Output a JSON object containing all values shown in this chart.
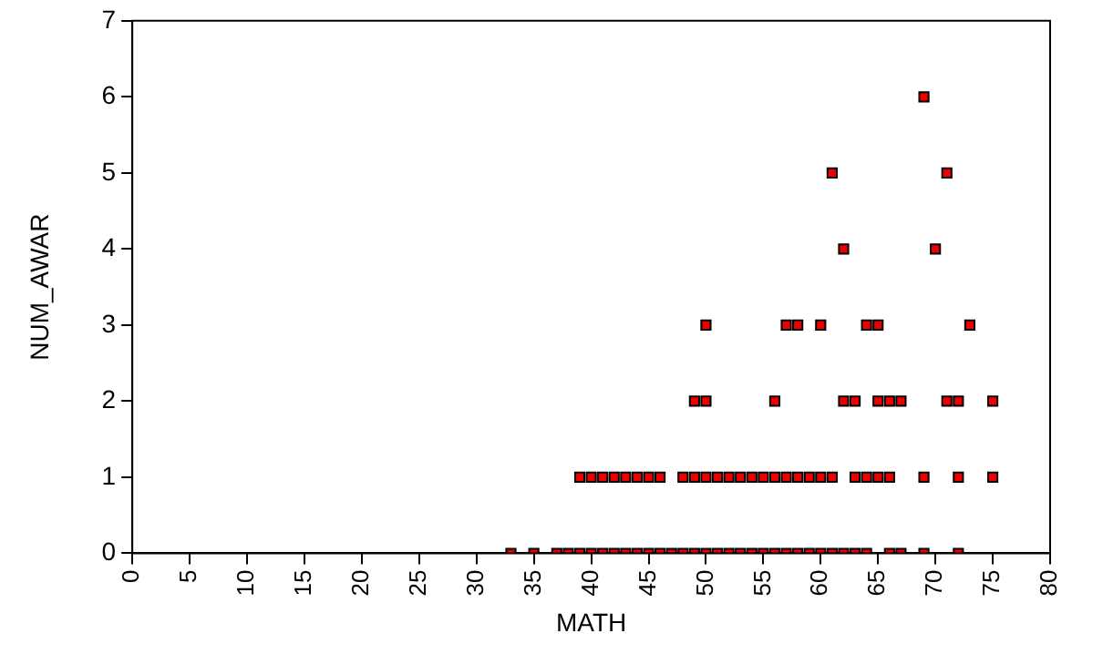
{
  "chart_data": {
    "type": "scatter",
    "xlabel": "MATH",
    "ylabel": "NUM_AWAR",
    "xlim": [
      0,
      80
    ],
    "xticks": [
      0,
      5,
      10,
      15,
      20,
      25,
      30,
      35,
      40,
      45,
      50,
      55,
      60,
      65,
      70,
      75,
      80
    ],
    "ylim": [
      0,
      7
    ],
    "yticks": [
      0,
      1,
      2,
      3,
      4,
      5,
      6,
      7
    ],
    "grid": false,
    "legend": false,
    "marker": "square",
    "series": [
      {
        "color": "#ee0000",
        "x": [
          33,
          35,
          37,
          38,
          39,
          40,
          41,
          42,
          43,
          44,
          45,
          46,
          47,
          48,
          49,
          50,
          51,
          52,
          53,
          54,
          55,
          56,
          57,
          58,
          59,
          60,
          61,
          62,
          63,
          64,
          66,
          67,
          69,
          72,
          39,
          40,
          41,
          42,
          43,
          44,
          45,
          46,
          48,
          49,
          50,
          51,
          52,
          53,
          54,
          55,
          56,
          57,
          58,
          59,
          60,
          61,
          63,
          64,
          65,
          66,
          69,
          72,
          75,
          49,
          50,
          56,
          62,
          63,
          65,
          66,
          67,
          71,
          72,
          75,
          50,
          57,
          58,
          60,
          64,
          65,
          73,
          62,
          70,
          61,
          71,
          69
        ],
        "values": [
          0,
          0,
          0,
          0,
          0,
          0,
          0,
          0,
          0,
          0,
          0,
          0,
          0,
          0,
          0,
          0,
          0,
          0,
          0,
          0,
          0,
          0,
          0,
          0,
          0,
          0,
          0,
          0,
          0,
          0,
          0,
          0,
          0,
          0,
          1,
          1,
          1,
          1,
          1,
          1,
          1,
          1,
          1,
          1,
          1,
          1,
          1,
          1,
          1,
          1,
          1,
          1,
          1,
          1,
          1,
          1,
          1,
          1,
          1,
          1,
          1,
          1,
          1,
          2,
          2,
          2,
          2,
          2,
          2,
          2,
          2,
          2,
          2,
          2,
          3,
          3,
          3,
          3,
          3,
          3,
          3,
          4,
          4,
          5,
          5,
          6
        ]
      }
    ]
  }
}
